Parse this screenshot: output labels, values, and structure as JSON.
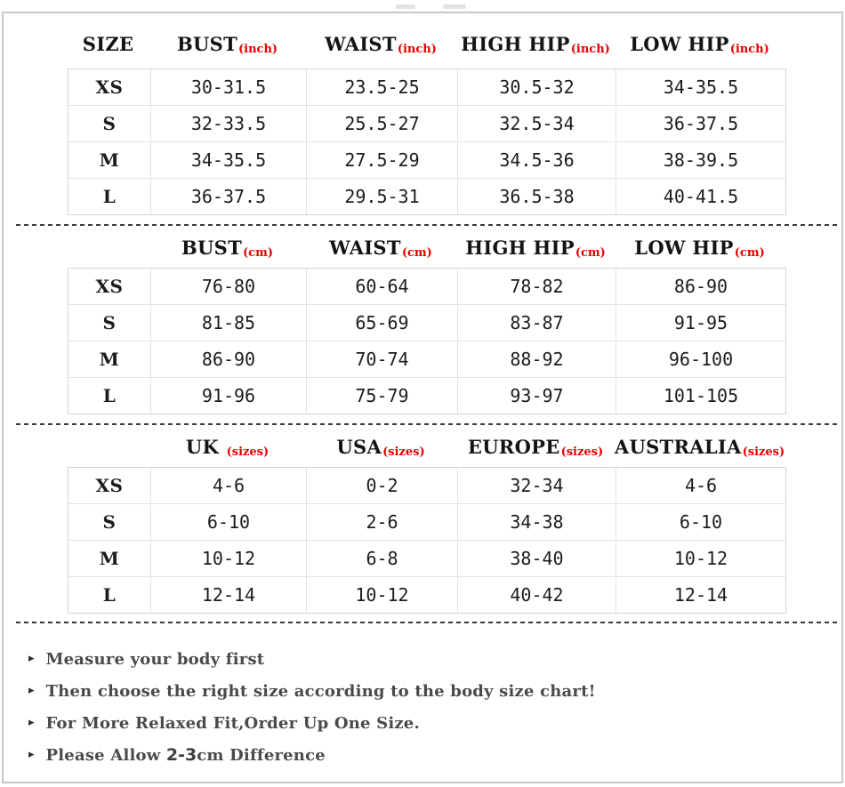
{
  "accent": {
    "red": "#e60000",
    "border_gray": "#c7c7c7"
  },
  "tables": [
    {
      "id": "inch",
      "headers": [
        {
          "label": "SIZE",
          "unit": ""
        },
        {
          "label": "BUST",
          "unit": "(inch)"
        },
        {
          "label": "WAIST",
          "unit": "(inch)"
        },
        {
          "label": "HIGH HIP",
          "unit": "(inch)"
        },
        {
          "label": "LOW HIP",
          "unit": "(inch)"
        }
      ],
      "rows": [
        [
          "XS",
          "30-31.5",
          "23.5-25",
          "30.5-32",
          "34-35.5"
        ],
        [
          "S",
          "32-33.5",
          "25.5-27",
          "32.5-34",
          "36-37.5"
        ],
        [
          "M",
          "34-35.5",
          "27.5-29",
          "34.5-36",
          "38-39.5"
        ],
        [
          "L",
          "36-37.5",
          "29.5-31",
          "36.5-38",
          "40-41.5"
        ]
      ]
    },
    {
      "id": "cm",
      "headers": [
        {
          "label": "",
          "unit": ""
        },
        {
          "label": "BUST",
          "unit": "(cm)"
        },
        {
          "label": "WAIST",
          "unit": "(cm)"
        },
        {
          "label": "HIGH HIP",
          "unit": "(cm)"
        },
        {
          "label": "LOW HIP",
          "unit": "(cm)"
        }
      ],
      "rows": [
        [
          "XS",
          "76-80",
          "60-64",
          "78-82",
          "86-90"
        ],
        [
          "S",
          "81-85",
          "65-69",
          "83-87",
          "91-95"
        ],
        [
          "M",
          "86-90",
          "70-74",
          "88-92",
          "96-100"
        ],
        [
          "L",
          "91-96",
          "75-79",
          "93-97",
          "101-105"
        ]
      ]
    },
    {
      "id": "international-sizes",
      "headers": [
        {
          "label": "",
          "unit": ""
        },
        {
          "label": "UK ",
          "unit": "(sizes)"
        },
        {
          "label": "USA",
          "unit": "(sizes)"
        },
        {
          "label": "EUROPE",
          "unit": "(sizes)"
        },
        {
          "label": "AUSTRALIA",
          "unit": "(sizes)"
        }
      ],
      "rows": [
        [
          "XS",
          "4-6",
          "0-2",
          "32-34",
          "4-6"
        ],
        [
          "S",
          "6-10",
          "2-6",
          "34-38",
          "6-10"
        ],
        [
          "M",
          "10-12",
          "6-8",
          "38-40",
          "10-12"
        ],
        [
          "L",
          "12-14",
          "10-12",
          "40-42",
          "12-14"
        ]
      ]
    }
  ],
  "notes": {
    "bullet": "▸",
    "items": [
      {
        "pre": "Measure your body first",
        "em": "",
        "post": ""
      },
      {
        "pre": "Then choose the right size according to the body size chart!",
        "em": "",
        "post": ""
      },
      {
        "pre": "For More Relaxed Fit,Order Up One Size.",
        "em": "",
        "post": ""
      },
      {
        "pre": "Please Allow ",
        "em": "2-3",
        "post": "cm Difference"
      }
    ]
  }
}
